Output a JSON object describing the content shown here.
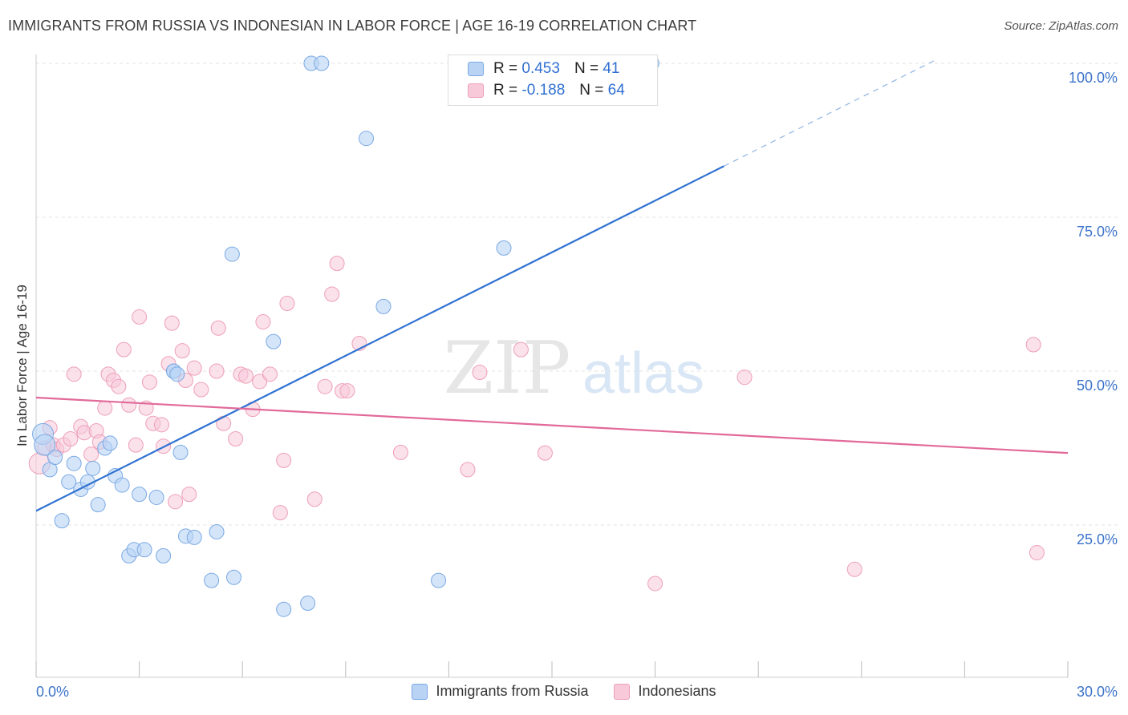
{
  "header": {
    "title": "IMMIGRANTS FROM RUSSIA VS INDONESIAN IN LABOR FORCE | AGE 16-19 CORRELATION CHART",
    "source": "Source: ZipAtlas.com"
  },
  "watermark": {
    "zip": "ZIP",
    "atlas": "atlas"
  },
  "legend": {
    "rows": [
      {
        "r_label": "R =",
        "r_value": "0.453",
        "n_label": "N =",
        "n_value": "41"
      },
      {
        "r_label": "R =",
        "r_value": "-0.188",
        "n_label": "N =",
        "n_value": "64"
      }
    ]
  },
  "bottom_legend": {
    "items": [
      {
        "label": "Immigrants from Russia"
      },
      {
        "label": "Indonesians"
      }
    ]
  },
  "colors": {
    "blue_fill": "#b9d3f5",
    "blue_stroke": "#7aa9e3",
    "blue_line": "#2f72d2",
    "pink_fill": "#f8c9d8",
    "pink_stroke": "#ee9fb8",
    "pink_line": "#e2699a",
    "tick_label": "#3c73c9",
    "grid": "#e3e3e3"
  },
  "chart_data": {
    "type": "scatter",
    "title": "IMMIGRANTS FROM RUSSIA VS INDONESIAN IN LABOR FORCE | AGE 16-19 CORRELATION CHART",
    "xlabel": "",
    "ylabel": "In Labor Force | Age 16-19",
    "xlim": [
      0,
      30
    ],
    "ylim": [
      2,
      102
    ],
    "x_tick_labels": [
      "0.0%",
      "30.0%"
    ],
    "y_ticks": [
      25,
      50,
      75,
      100
    ],
    "y_tick_labels": [
      "25.0%",
      "50.0%",
      "75.0%",
      "100.0%"
    ],
    "grid": true,
    "legend_position": "top-center",
    "series": [
      {
        "name": "Immigrants from Russia",
        "color": "#7aa9e3",
        "points": [
          [
            0.2,
            39.8
          ],
          [
            0.25,
            38.0
          ],
          [
            0.4,
            34.0
          ],
          [
            0.55,
            36.0
          ],
          [
            0.75,
            25.7
          ],
          [
            0.95,
            32.0
          ],
          [
            1.1,
            35.0
          ],
          [
            1.3,
            30.8
          ],
          [
            1.5,
            32.0
          ],
          [
            1.65,
            34.2
          ],
          [
            1.8,
            28.3
          ],
          [
            2.0,
            37.5
          ],
          [
            2.15,
            38.3
          ],
          [
            2.3,
            33.0
          ],
          [
            2.5,
            31.5
          ],
          [
            2.7,
            20.0
          ],
          [
            2.85,
            21.0
          ],
          [
            3.0,
            30.0
          ],
          [
            3.15,
            21.0
          ],
          [
            3.5,
            29.5
          ],
          [
            3.7,
            20.0
          ],
          [
            4.0,
            50.0
          ],
          [
            4.0,
            50.0
          ],
          [
            4.1,
            49.5
          ],
          [
            4.2,
            36.8
          ],
          [
            4.35,
            23.2
          ],
          [
            4.6,
            23.0
          ],
          [
            5.1,
            16.0
          ],
          [
            5.25,
            23.9
          ],
          [
            5.7,
            69.0
          ],
          [
            5.75,
            16.5
          ],
          [
            6.9,
            54.8
          ],
          [
            7.2,
            11.3
          ],
          [
            7.9,
            12.3
          ],
          [
            8.0,
            100.0
          ],
          [
            8.3,
            100.0
          ],
          [
            9.6,
            87.8
          ],
          [
            10.1,
            60.5
          ],
          [
            11.7,
            16.0
          ],
          [
            13.6,
            70.0
          ],
          [
            17.9,
            100.0
          ]
        ]
      },
      {
        "name": "Indonesians",
        "color": "#ee9fb8",
        "points": [
          [
            0.1,
            35.0
          ],
          [
            0.25,
            37.5
          ],
          [
            0.4,
            40.8
          ],
          [
            0.5,
            38.0
          ],
          [
            0.6,
            37.3
          ],
          [
            0.8,
            38.0
          ],
          [
            1.0,
            39.0
          ],
          [
            1.1,
            49.5
          ],
          [
            1.3,
            41.0
          ],
          [
            1.4,
            40.0
          ],
          [
            1.6,
            36.5
          ],
          [
            1.75,
            40.3
          ],
          [
            1.85,
            38.5
          ],
          [
            2.0,
            44.0
          ],
          [
            2.1,
            49.5
          ],
          [
            2.25,
            48.5
          ],
          [
            2.4,
            47.5
          ],
          [
            2.55,
            53.5
          ],
          [
            2.7,
            44.5
          ],
          [
            2.9,
            38.0
          ],
          [
            3.0,
            58.8
          ],
          [
            3.2,
            44.0
          ],
          [
            3.3,
            48.2
          ],
          [
            3.4,
            41.5
          ],
          [
            3.65,
            41.3
          ],
          [
            3.7,
            37.8
          ],
          [
            3.85,
            51.2
          ],
          [
            3.95,
            57.8
          ],
          [
            4.05,
            28.8
          ],
          [
            4.25,
            53.3
          ],
          [
            4.35,
            48.5
          ],
          [
            4.45,
            30.0
          ],
          [
            4.6,
            50.5
          ],
          [
            4.8,
            47.0
          ],
          [
            5.25,
            50.0
          ],
          [
            5.3,
            57.0
          ],
          [
            5.45,
            41.5
          ],
          [
            5.8,
            39.0
          ],
          [
            5.95,
            49.5
          ],
          [
            6.1,
            49.2
          ],
          [
            6.3,
            43.8
          ],
          [
            6.5,
            48.3
          ],
          [
            6.6,
            58.0
          ],
          [
            6.8,
            49.5
          ],
          [
            7.1,
            27.0
          ],
          [
            7.2,
            35.5
          ],
          [
            7.3,
            61.0
          ],
          [
            8.1,
            29.2
          ],
          [
            8.4,
            47.5
          ],
          [
            8.6,
            62.5
          ],
          [
            8.75,
            67.5
          ],
          [
            8.9,
            46.8
          ],
          [
            9.05,
            46.8
          ],
          [
            9.4,
            54.5
          ],
          [
            10.6,
            36.8
          ],
          [
            12.55,
            34.0
          ],
          [
            12.9,
            49.8
          ],
          [
            14.1,
            53.5
          ],
          [
            14.8,
            36.7
          ],
          [
            18.0,
            15.5
          ],
          [
            20.6,
            49.0
          ],
          [
            23.8,
            17.8
          ],
          [
            29.0,
            54.3
          ],
          [
            29.1,
            20.5
          ]
        ]
      }
    ],
    "trend_lines": [
      {
        "series": "Immigrants from Russia",
        "x1": 0,
        "y1": 27.3,
        "x2": 20.0,
        "y2": 83.3,
        "dashed_to_x": 30.0,
        "dashed_to_y": 111.3
      },
      {
        "series": "Indonesians",
        "x1": 0,
        "y1": 45.7,
        "x2": 30.0,
        "y2": 36.7
      }
    ]
  }
}
